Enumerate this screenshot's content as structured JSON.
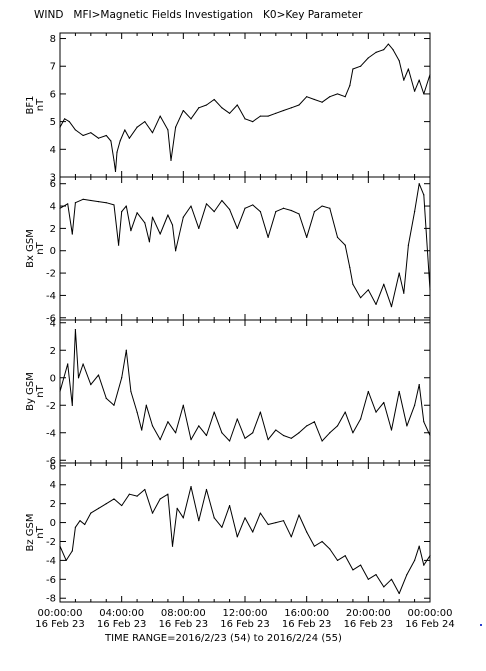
{
  "header": {
    "title": "WIND   MFI>Magnetic Fields Investigation   K0>Key Parameter"
  },
  "footer": {
    "time_range": "TIME RANGE=2016/2/23 (54) to 2016/2/24 (55)"
  },
  "colors": {
    "line": "#000000",
    "background": "#ffffff",
    "corner_dot": "#2a3fd0"
  },
  "chart_data": [
    {
      "type": "line",
      "ylabel": "BF1",
      "unit": "nT",
      "ylim": [
        3,
        8.2
      ],
      "yticks": [
        3,
        4,
        5,
        6,
        7,
        8
      ],
      "x": [
        0,
        0.3,
        0.6,
        1,
        1.5,
        2,
        2.5,
        3,
        3.3,
        3.5,
        3.6,
        3.7,
        3.9,
        4.2,
        4.5,
        5,
        5.5,
        6,
        6.5,
        7,
        7.2,
        7.5,
        8,
        8.5,
        9,
        9.5,
        10,
        10.5,
        11,
        11.5,
        12,
        12.5,
        13,
        13.5,
        14,
        14.5,
        15,
        15.5,
        16,
        16.5,
        17,
        17.5,
        18,
        18.5,
        18.8,
        19,
        19.5,
        20,
        20.5,
        21,
        21.3,
        21.6,
        22,
        22.3,
        22.6,
        23,
        23.3,
        23.6,
        24
      ],
      "y": [
        4.8,
        5.1,
        5.0,
        4.7,
        4.5,
        4.6,
        4.4,
        4.5,
        4.3,
        3.6,
        3.2,
        3.9,
        4.3,
        4.7,
        4.4,
        4.8,
        5.0,
        4.6,
        5.2,
        4.7,
        3.6,
        4.8,
        5.4,
        5.1,
        5.5,
        5.6,
        5.8,
        5.5,
        5.3,
        5.6,
        5.1,
        5.0,
        5.2,
        5.2,
        5.3,
        5.4,
        5.5,
        5.6,
        5.9,
        5.8,
        5.7,
        5.9,
        6.0,
        5.9,
        6.3,
        6.9,
        7.0,
        7.3,
        7.5,
        7.6,
        7.8,
        7.6,
        7.2,
        6.5,
        6.9,
        6.1,
        6.5,
        6.0,
        6.7
      ]
    },
    {
      "type": "line",
      "ylabel": "Bx GSM",
      "unit": "nT",
      "ylim": [
        -6.2,
        6.6
      ],
      "yticks": [
        -6,
        -4,
        -2,
        0,
        2,
        4,
        6
      ],
      "x": [
        0,
        0.5,
        0.8,
        1,
        1.5,
        2,
        2.5,
        3,
        3.5,
        3.8,
        4,
        4.3,
        4.6,
        5,
        5.5,
        5.8,
        6,
        6.5,
        7,
        7.3,
        7.5,
        8,
        8.5,
        9,
        9.5,
        10,
        10.5,
        11,
        11.5,
        12,
        12.5,
        13,
        13.5,
        14,
        14.5,
        15,
        15.5,
        16,
        16.5,
        17,
        17.5,
        18,
        18.5,
        18.8,
        19,
        19.5,
        20,
        20.5,
        21,
        21.5,
        22,
        22.3,
        22.6,
        23,
        23.3,
        23.6,
        24
      ],
      "y": [
        3.8,
        4.2,
        1.5,
        4.3,
        4.6,
        4.5,
        4.4,
        4.3,
        4.1,
        0.5,
        3.5,
        4.0,
        1.8,
        3.4,
        2.5,
        0.8,
        3.0,
        1.5,
        3.2,
        2.3,
        0.0,
        3.0,
        4.0,
        2.0,
        4.2,
        3.5,
        4.5,
        3.7,
        2.0,
        3.8,
        4.1,
        3.5,
        1.2,
        3.5,
        3.8,
        3.6,
        3.3,
        1.2,
        3.5,
        4.0,
        3.8,
        1.2,
        0.5,
        -1.5,
        -3.0,
        -4.2,
        -3.5,
        -4.8,
        -3.0,
        -5.0,
        -2.0,
        -3.8,
        0.5,
        3.5,
        6.0,
        5.0,
        -3.5
      ]
    },
    {
      "type": "line",
      "ylabel": "By GSM",
      "unit": "nT",
      "ylim": [
        -6.2,
        4.2
      ],
      "yticks": [
        -6,
        -4,
        -2,
        0,
        2,
        4
      ],
      "x": [
        0,
        0.5,
        0.8,
        1,
        1.2,
        1.5,
        2,
        2.5,
        3,
        3.5,
        4,
        4.3,
        4.6,
        5,
        5.3,
        5.6,
        6,
        6.5,
        7,
        7.5,
        8,
        8.5,
        9,
        9.5,
        10,
        10.5,
        11,
        11.5,
        12,
        12.5,
        13,
        13.5,
        14,
        14.5,
        15,
        15.5,
        16,
        16.5,
        17,
        17.5,
        18,
        18.5,
        19,
        19.5,
        20,
        20.5,
        21,
        21.5,
        22,
        22.5,
        23,
        23.3,
        23.6,
        24
      ],
      "y": [
        -1.0,
        1.0,
        -2.0,
        3.5,
        0.0,
        1.0,
        -0.5,
        0.2,
        -1.5,
        -2.0,
        0.0,
        2.0,
        -1.0,
        -2.5,
        -3.8,
        -2.0,
        -3.5,
        -4.5,
        -3.2,
        -4.0,
        -2.0,
        -4.5,
        -3.5,
        -4.2,
        -2.5,
        -4.0,
        -4.6,
        -3.0,
        -4.4,
        -4.0,
        -2.5,
        -4.5,
        -3.8,
        -4.2,
        -4.4,
        -4.0,
        -3.5,
        -3.2,
        -4.6,
        -4.0,
        -3.5,
        -2.5,
        -4.0,
        -3.0,
        -1.0,
        -2.5,
        -1.8,
        -3.8,
        -1.0,
        -3.5,
        -2.0,
        -0.5,
        -3.2,
        -4.2
      ]
    },
    {
      "type": "line",
      "ylabel": "Bz GSM",
      "unit": "nT",
      "ylim": [
        -8.4,
        6.3
      ],
      "yticks": [
        -8,
        -6,
        -4,
        -2,
        0,
        2,
        4,
        6
      ],
      "x": [
        0,
        0.4,
        0.8,
        1,
        1.3,
        1.6,
        2,
        2.5,
        3,
        3.5,
        4,
        4.5,
        5,
        5.5,
        6,
        6.5,
        7,
        7.3,
        7.6,
        8,
        8.5,
        9,
        9.5,
        10,
        10.5,
        11,
        11.5,
        12,
        12.5,
        13,
        13.5,
        14,
        14.5,
        15,
        15.5,
        16,
        16.5,
        17,
        17.5,
        18,
        18.5,
        19,
        19.5,
        20,
        20.5,
        21,
        21.5,
        22,
        22.5,
        23,
        23.3,
        23.6,
        24
      ],
      "y": [
        -2.5,
        -4.0,
        -3.0,
        -0.5,
        0.2,
        -0.2,
        1.0,
        1.5,
        2.0,
        2.5,
        1.8,
        3.0,
        2.8,
        3.5,
        1.0,
        2.5,
        3.0,
        -2.5,
        1.5,
        0.5,
        3.8,
        0.2,
        3.5,
        0.5,
        -0.5,
        1.8,
        -1.5,
        0.5,
        -1.0,
        1.0,
        -0.2,
        0.0,
        0.2,
        -1.5,
        0.8,
        -1.0,
        -2.5,
        -2.0,
        -2.8,
        -4.0,
        -3.5,
        -5.0,
        -4.5,
        -6.0,
        -5.5,
        -6.8,
        -6.0,
        -7.5,
        -5.5,
        -4.0,
        -2.5,
        -4.5,
        -3.5
      ]
    }
  ],
  "x_axis": {
    "tick_times": [
      "00:00:00",
      "04:00:00",
      "08:00:00",
      "12:00:00",
      "16:00:00",
      "20:00:00",
      "00:00:00"
    ],
    "tick_dates": [
      "16 Feb 23",
      "16 Feb 23",
      "16 Feb 23",
      "16 Feb 23",
      "16 Feb 23",
      "16 Feb 23",
      "16 Feb 24"
    ],
    "hours": [
      0,
      4,
      8,
      12,
      16,
      20,
      24
    ]
  }
}
